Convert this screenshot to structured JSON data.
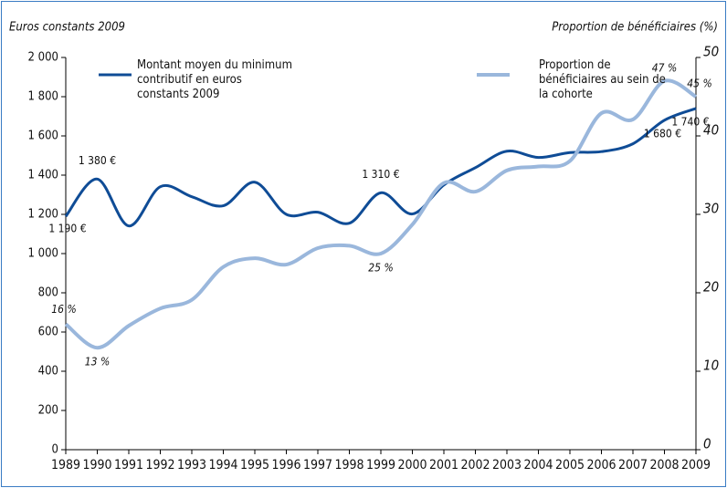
{
  "chart_data": {
    "type": "line",
    "y_axis_title": "Euros constants 2009",
    "y2_axis_title": "Proportion de bénéficiaires (%)",
    "x": [
      1989,
      1990,
      1991,
      1992,
      1993,
      1994,
      1995,
      1996,
      1997,
      1998,
      1999,
      2000,
      2001,
      2002,
      2003,
      2004,
      2005,
      2006,
      2007,
      2008,
      2009
    ],
    "xlim": [
      1989,
      2009
    ],
    "xticks": [
      1989,
      1990,
      1991,
      1992,
      1993,
      1994,
      1995,
      1996,
      1997,
      1998,
      1999,
      2000,
      2001,
      2002,
      2003,
      2004,
      2005,
      2006,
      2007,
      2008,
      2009
    ],
    "ylim": [
      0,
      2000
    ],
    "yticks": [
      0,
      200,
      400,
      600,
      800,
      {
        "value": 1000,
        "label": "1 000"
      },
      {
        "value": 1200,
        "label": "1 200"
      },
      {
        "value": 1400,
        "label": "1 400"
      },
      {
        "value": 1600,
        "label": "1 600"
      },
      {
        "value": 1800,
        "label": "1 800"
      },
      {
        "value": 2000,
        "label": "2 000"
      }
    ],
    "y2lim": [
      0,
      50
    ],
    "y2ticks": [
      0,
      10,
      20,
      30,
      40,
      50
    ],
    "grid": false,
    "series": [
      {
        "name": "Montant moyen du minimum contributif en euros constants 2009",
        "color": "#0f4c96",
        "values": [
          1190,
          1380,
          1141,
          1341,
          1290,
          1244,
          1364,
          1200,
          1211,
          1155,
          1310,
          1202,
          1350,
          1438,
          1522,
          1490,
          1515,
          1520,
          1560,
          1680,
          1740
        ],
        "value_labels": [
          "1 190 €",
          "1 380 €",
          null,
          null,
          null,
          null,
          null,
          null,
          null,
          null,
          "1 310 €",
          null,
          null,
          null,
          null,
          null,
          null,
          null,
          null,
          "1 680 €",
          "1 740 €"
        ]
      },
      {
        "name": "Proportion de bénéficiaires au sein de la cohorte",
        "color": "#9ab7dc",
        "axis": "y2",
        "values": [
          16,
          13,
          15.8,
          18.0,
          19.1,
          23.3,
          24.4,
          23.6,
          25.7,
          26.0,
          25,
          28.7,
          34.0,
          32.9,
          35.6,
          36.1,
          36.8,
          42.9,
          42.1,
          47,
          45
        ],
        "value_labels": [
          "16 %",
          "13 %",
          null,
          null,
          null,
          null,
          null,
          null,
          null,
          null,
          "25 %",
          null,
          null,
          null,
          null,
          null,
          null,
          null,
          null,
          "47 %",
          "45 %"
        ]
      }
    ]
  }
}
